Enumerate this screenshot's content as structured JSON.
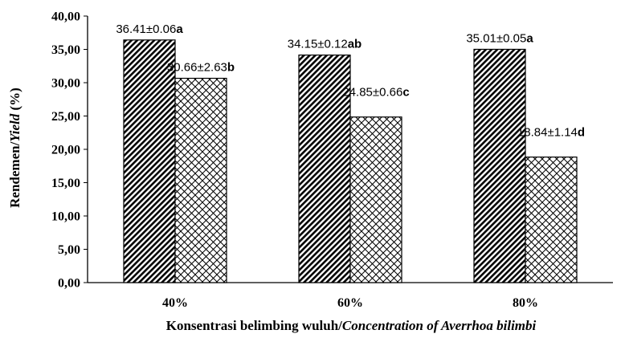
{
  "chart_data": {
    "type": "bar",
    "categories": [
      "40%",
      "60%",
      "80%"
    ],
    "series": [
      {
        "values": [
          36.41,
          34.15,
          35.01
        ],
        "pattern": "dense-diagonal"
      },
      {
        "values": [
          30.66,
          24.85,
          18.84
        ],
        "pattern": "crosshatch"
      }
    ],
    "data_labels": [
      [
        {
          "value": "36.41±0.06",
          "letter": "a"
        },
        {
          "value": "34.15±0.12",
          "letter": "ab"
        },
        {
          "value": "35.01±0.05",
          "letter": "a"
        }
      ],
      [
        {
          "value": "30.66±2.63",
          "letter": "b"
        },
        {
          "value": "24.85±0.66",
          "letter": "c"
        },
        {
          "value": "18.84±1.14",
          "letter": "d"
        }
      ]
    ],
    "yticks": [
      "0,00",
      "5,00",
      "10,00",
      "15,00",
      "20,00",
      "25,00",
      "30,00",
      "35,00",
      "40,00"
    ],
    "ylim": [
      0,
      40
    ],
    "ylabel": {
      "main": "Rendemen/",
      "italic": "Yield",
      "suffix": " (%)"
    },
    "xlabel": {
      "main": "Konsentrasi belimbing wuluh/",
      "italic": "Concentration of Averrhoa bilimbi"
    },
    "grid": false
  }
}
